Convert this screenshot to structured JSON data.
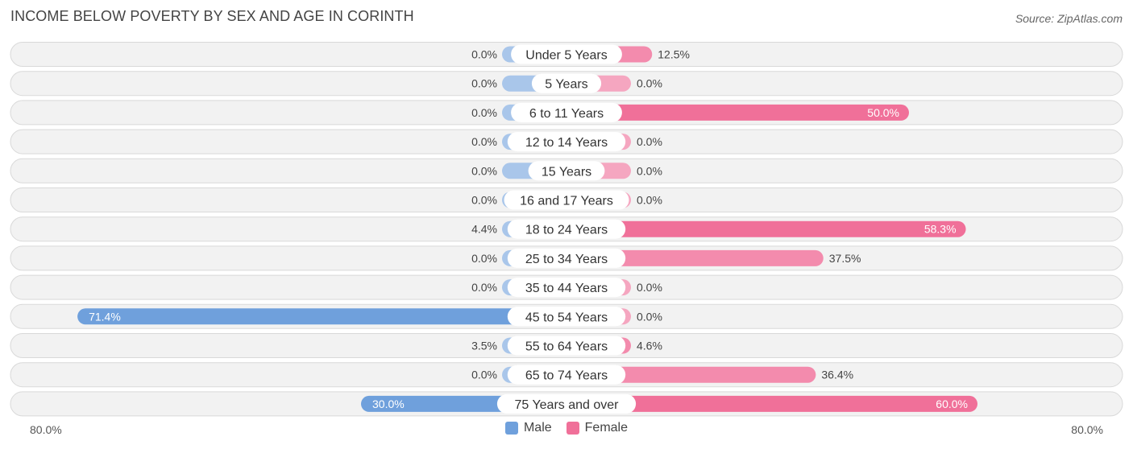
{
  "title": "INCOME BELOW POVERTY BY SEX AND AGE IN CORINTH",
  "source": "Source: ZipAtlas.com",
  "colors": {
    "male": "#6fa0dc",
    "male_light": "#a9c6ea",
    "female": "#f07099",
    "female_light": "#f5a6c0",
    "row_bg": "#f2f2f2",
    "row_border": "#d9d9d9"
  },
  "legend": {
    "male": "Male",
    "female": "Female"
  },
  "axis": {
    "left_label": "80.0%",
    "right_label": "80.0%"
  },
  "chart_data": {
    "type": "bar",
    "orientation": "horizontal-diverging",
    "xlim": [
      -80,
      80
    ],
    "categories": [
      "Under 5 Years",
      "5 Years",
      "6 to 11 Years",
      "12 to 14 Years",
      "15 Years",
      "16 and 17 Years",
      "18 to 24 Years",
      "25 to 34 Years",
      "35 to 44 Years",
      "45 to 54 Years",
      "55 to 64 Years",
      "65 to 74 Years",
      "75 Years and over"
    ],
    "series": [
      {
        "name": "Male",
        "values": [
          0.0,
          0.0,
          0.0,
          0.0,
          0.0,
          0.0,
          4.4,
          0.0,
          0.0,
          71.4,
          3.5,
          0.0,
          30.0
        ],
        "labels": [
          "0.0%",
          "0.0%",
          "0.0%",
          "0.0%",
          "0.0%",
          "0.0%",
          "4.4%",
          "0.0%",
          "0.0%",
          "71.4%",
          "3.5%",
          "0.0%",
          "30.0%"
        ]
      },
      {
        "name": "Female",
        "values": [
          12.5,
          0.0,
          50.0,
          0.0,
          0.0,
          0.0,
          58.3,
          37.5,
          0.0,
          0.0,
          4.6,
          36.4,
          60.0
        ],
        "labels": [
          "12.5%",
          "0.0%",
          "50.0%",
          "0.0%",
          "0.0%",
          "0.0%",
          "58.3%",
          "37.5%",
          "0.0%",
          "0.0%",
          "4.6%",
          "36.4%",
          "60.0%"
        ]
      }
    ]
  }
}
